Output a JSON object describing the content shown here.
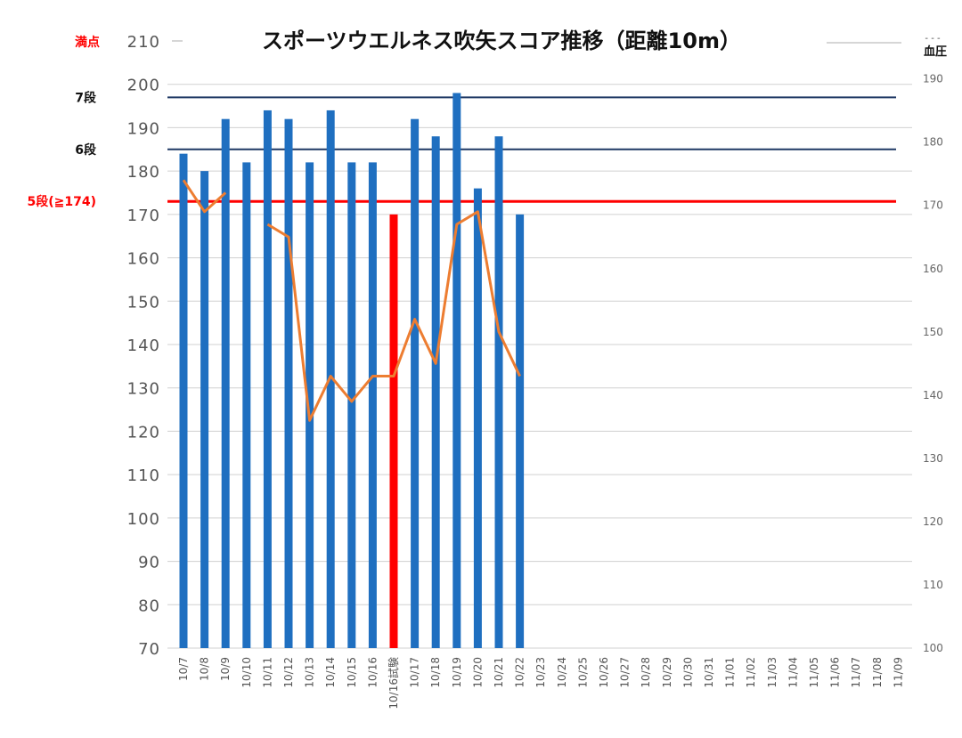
{
  "chart_data": {
    "type": "bar",
    "title": "スポーツウエルネス吹矢スコア推移（距離10m）",
    "categories": [
      "10/7",
      "10/8",
      "10/9",
      "10/10",
      "10/11",
      "10/12",
      "10/13",
      "10/14",
      "10/15",
      "10/16",
      "10/16試験",
      "10/17",
      "10/18",
      "10/19",
      "10/20",
      "10/21",
      "10/22",
      "10/23",
      "10/24",
      "10/25",
      "10/26",
      "10/27",
      "10/28",
      "10/29",
      "10/30",
      "10/31",
      "11/01",
      "11/02",
      "11/03",
      "11/04",
      "11/05",
      "11/06",
      "11/07",
      "11/08",
      "11/09"
    ],
    "series": [
      {
        "type": "bar",
        "axis": "left",
        "values": [
          184,
          180,
          192,
          182,
          194,
          192,
          182,
          194,
          182,
          182,
          170,
          192,
          188,
          198,
          176,
          188,
          170,
          null,
          null,
          null,
          null,
          null,
          null,
          null,
          null,
          null,
          null,
          null,
          null,
          null,
          null,
          null,
          null,
          null,
          null
        ],
        "color": "#1f6fc0",
        "highlight": {
          "10/16試験": "#ff0000"
        }
      },
      {
        "type": "line",
        "axis": "right",
        "name": "血圧",
        "values": [
          174,
          169,
          172,
          null,
          167,
          165,
          136,
          143,
          139,
          143,
          143,
          152,
          145,
          167,
          169,
          150,
          143,
          null,
          null,
          null,
          null,
          null,
          null,
          null,
          null,
          null,
          null,
          null,
          null,
          null,
          null,
          null,
          null,
          null,
          null
        ],
        "color": "#ed7d31"
      }
    ],
    "ylim": [
      70,
      210
    ],
    "yticks": [
      "70",
      "80",
      "90",
      "100",
      "110",
      "120",
      "130",
      "140",
      "150",
      "160",
      "170",
      "180",
      "190",
      "200",
      "210"
    ],
    "y2lim": [
      100,
      196
    ],
    "y2ticks": [
      "100",
      "110",
      "120",
      "130",
      "140",
      "150",
      "160",
      "170",
      "180",
      "190"
    ],
    "y2label": "血圧",
    "reference_lines": [
      {
        "label": "7段",
        "value": 197,
        "color": "#1f3864",
        "label_color": "#111111"
      },
      {
        "label": "6段",
        "value": 185,
        "color": "#1f3864",
        "label_color": "#111111"
      },
      {
        "label": "5段(≧174)",
        "value": 173,
        "color": "#ff0000",
        "label_color": "#ff0000"
      }
    ],
    "top_label": {
      "label": "満点",
      "color": "#ff0000"
    },
    "grid": true,
    "legend_marker": "- - -"
  }
}
